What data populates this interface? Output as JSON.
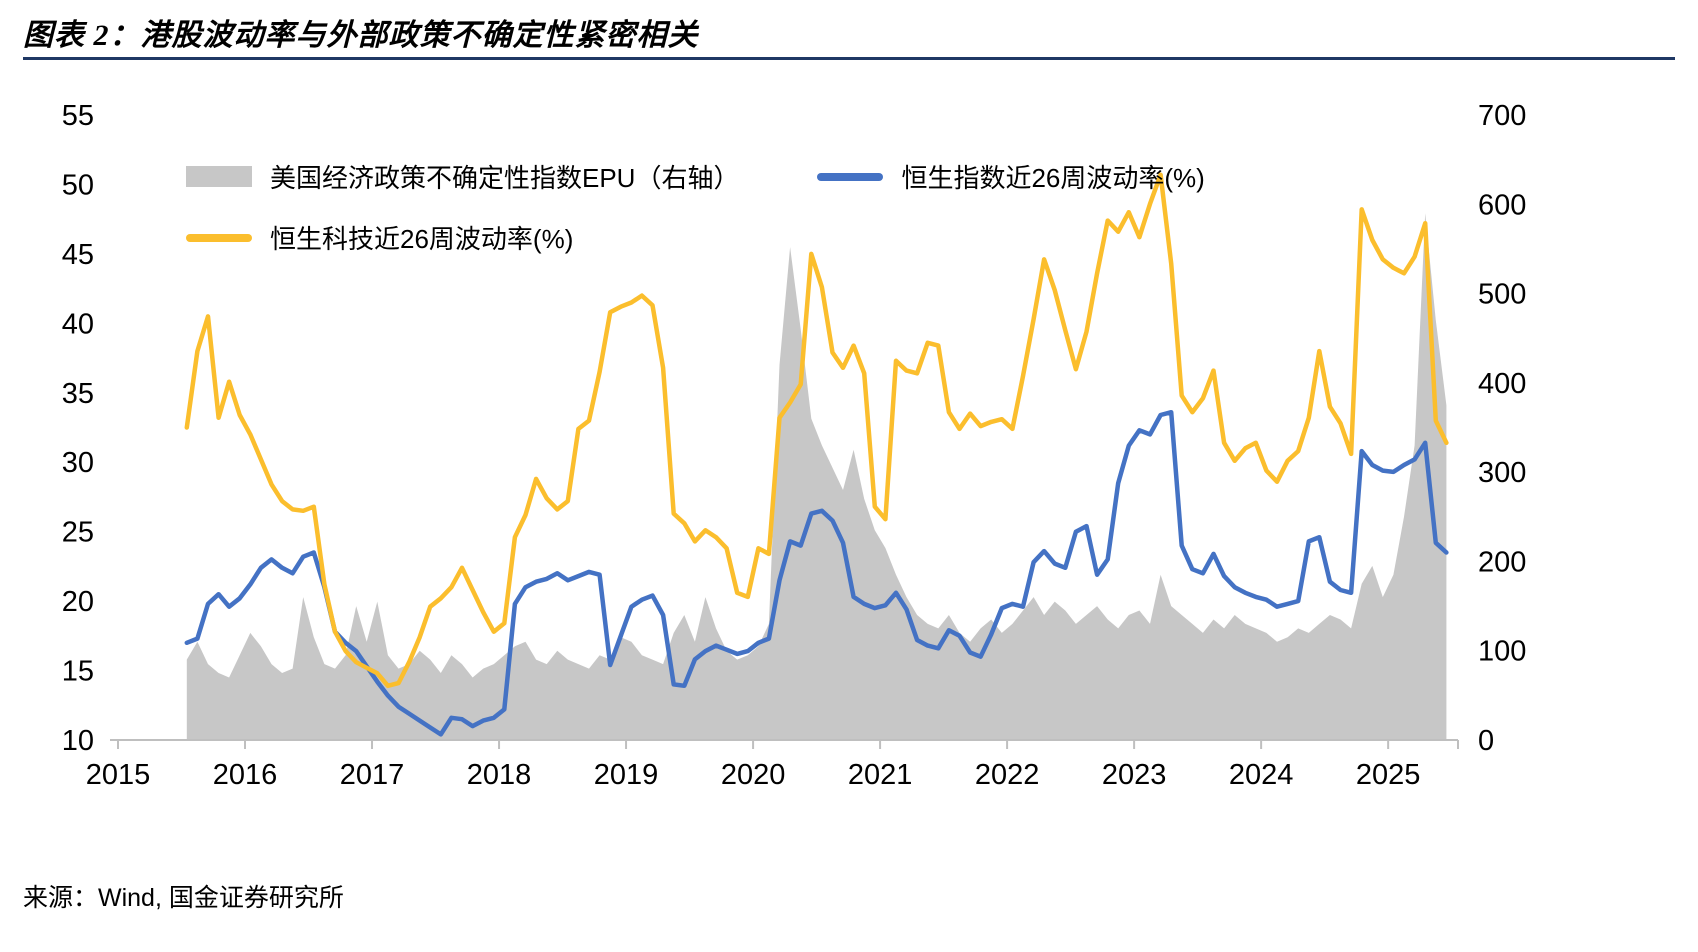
{
  "header": {
    "title": "图表 2：港股波动率与外部政策不确定性紧密相关"
  },
  "source": "来源：Wind, 国金证券研究所",
  "colors": {
    "epu_gray": "#C7C7C7",
    "hsi_blue": "#4472C4",
    "tech_gold": "#FBBE2D",
    "rule_navy": "#1F3864",
    "axis_gray": "#BFBFBF"
  },
  "legend": [
    {
      "label": "美国经济政策不确定性指数EPU（右轴）",
      "type": "area",
      "color": "#C7C7C7"
    },
    {
      "label": "恒生指数近26周波动率(%)",
      "type": "line",
      "color": "#4472C4"
    },
    {
      "label": "恒生科技近26周波动率(%)",
      "type": "line",
      "color": "#FBBE2D"
    }
  ],
  "chart_data": {
    "type": "combo",
    "title": "港股波动率与外部政策不确定性紧密相关",
    "x_start": 2015.5417,
    "x_step_years": 0.083333,
    "x_axis": {
      "min": 2015,
      "max": 2025.55,
      "ticks": [
        2015,
        2016,
        2017,
        2018,
        2019,
        2020,
        2021,
        2022,
        2023,
        2024,
        2025
      ]
    },
    "y_left": {
      "min": 10,
      "max": 55,
      "ticks": [
        55,
        50,
        45,
        40,
        35,
        30,
        25,
        20,
        15,
        10
      ]
    },
    "y_right": {
      "min": 0,
      "max": 700,
      "ticks": [
        700,
        600,
        500,
        400,
        300,
        200,
        100,
        0
      ]
    },
    "grid": false,
    "legend_position": "top-left-inside",
    "series": [
      {
        "name": "美国经济政策不确定性指数EPU（右轴）",
        "axis": "right",
        "type": "area",
        "color": "#C7C7C7",
        "values": [
          90,
          110,
          85,
          75,
          70,
          95,
          120,
          105,
          85,
          75,
          80,
          160,
          115,
          85,
          80,
          95,
          150,
          110,
          155,
          95,
          80,
          85,
          100,
          90,
          75,
          95,
          85,
          70,
          80,
          85,
          95,
          105,
          110,
          90,
          85,
          100,
          90,
          85,
          80,
          95,
          90,
          115,
          110,
          95,
          90,
          85,
          120,
          140,
          110,
          160,
          125,
          100,
          90,
          95,
          105,
          130,
          420,
          552,
          460,
          360,
          330,
          305,
          280,
          325,
          270,
          235,
          215,
          185,
          160,
          140,
          130,
          125,
          140,
          120,
          110,
          125,
          135,
          120,
          130,
          145,
          160,
          140,
          155,
          145,
          130,
          140,
          150,
          135,
          125,
          140,
          145,
          130,
          185,
          150,
          140,
          130,
          120,
          135,
          125,
          140,
          130,
          125,
          120,
          110,
          115,
          125,
          120,
          130,
          140,
          135,
          125,
          175,
          195,
          160,
          185,
          250,
          330,
          590,
          470,
          375
        ]
      },
      {
        "name": "恒生指数近26周波动率(%)",
        "axis": "left",
        "type": "line",
        "color": "#4472C4",
        "values": [
          17.0,
          17.3,
          19.8,
          20.5,
          19.6,
          20.2,
          21.2,
          22.4,
          23.0,
          22.4,
          22.0,
          23.2,
          23.5,
          21.0,
          17.8,
          17.0,
          16.4,
          15.3,
          14.2,
          13.2,
          12.4,
          11.9,
          11.4,
          10.9,
          10.4,
          11.6,
          11.5,
          11.0,
          11.4,
          11.6,
          12.2,
          19.8,
          21.0,
          21.4,
          21.6,
          22.0,
          21.5,
          21.8,
          22.1,
          21.9,
          15.4,
          17.5,
          19.6,
          20.1,
          20.4,
          19.0,
          14.0,
          13.9,
          15.8,
          16.4,
          16.8,
          16.5,
          16.2,
          16.4,
          17.0,
          17.3,
          21.5,
          24.3,
          24.0,
          26.3,
          26.5,
          25.8,
          24.2,
          20.3,
          19.8,
          19.5,
          19.7,
          20.6,
          19.4,
          17.2,
          16.8,
          16.6,
          17.9,
          17.5,
          16.3,
          16.0,
          17.6,
          19.5,
          19.8,
          19.6,
          22.8,
          23.6,
          22.7,
          22.4,
          25.0,
          25.4,
          21.9,
          23.0,
          28.5,
          31.2,
          32.3,
          32.0,
          33.4,
          33.6,
          24.0,
          22.3,
          22.0,
          23.4,
          21.8,
          21.0,
          20.6,
          20.3,
          20.1,
          19.6,
          19.8,
          20.0,
          24.3,
          24.6,
          21.4,
          20.8,
          20.6,
          30.8,
          29.8,
          29.4,
          29.3,
          29.8,
          30.2,
          31.4,
          24.2,
          23.5
        ]
      },
      {
        "name": "恒生科技近26周波动率(%)",
        "axis": "left",
        "type": "line",
        "color": "#FBBE2D",
        "values": [
          32.5,
          38.0,
          40.5,
          33.2,
          35.8,
          33.4,
          32.0,
          30.2,
          28.4,
          27.2,
          26.6,
          26.5,
          26.8,
          21.2,
          17.8,
          16.4,
          15.6,
          15.2,
          14.8,
          13.9,
          14.1,
          15.6,
          17.4,
          19.6,
          20.2,
          21.0,
          22.4,
          20.8,
          19.2,
          17.8,
          18.4,
          24.6,
          26.2,
          28.8,
          27.4,
          26.6,
          27.2,
          32.4,
          33.0,
          36.5,
          40.8,
          41.2,
          41.5,
          42.0,
          41.3,
          36.8,
          26.3,
          25.6,
          24.3,
          25.1,
          24.6,
          23.8,
          20.6,
          20.3,
          23.8,
          23.4,
          33.2,
          34.3,
          35.6,
          45.0,
          42.6,
          37.9,
          36.8,
          38.4,
          36.4,
          26.8,
          25.9,
          37.3,
          36.6,
          36.4,
          38.6,
          38.4,
          33.6,
          32.4,
          33.5,
          32.6,
          32.9,
          33.1,
          32.4,
          36.2,
          40.3,
          44.6,
          42.4,
          39.5,
          36.7,
          39.4,
          43.6,
          47.4,
          46.6,
          48.0,
          46.2,
          48.6,
          50.7,
          44.3,
          34.8,
          33.6,
          34.6,
          36.6,
          31.4,
          30.1,
          31.0,
          31.4,
          29.4,
          28.6,
          30.1,
          30.8,
          33.2,
          38.0,
          34.0,
          32.8,
          30.6,
          48.2,
          46.0,
          44.6,
          44.0,
          43.6,
          44.8,
          47.2,
          33.0,
          31.4
        ]
      }
    ]
  }
}
